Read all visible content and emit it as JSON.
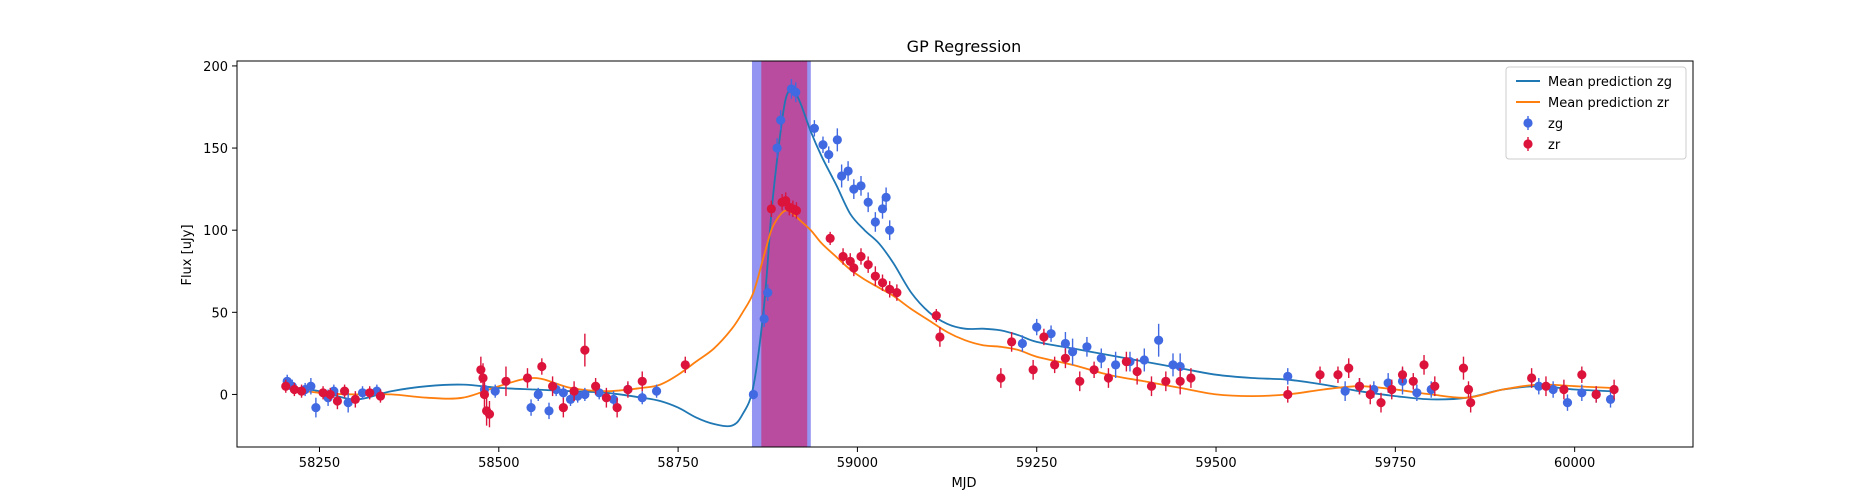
{
  "chart_data": {
    "type": "scatter",
    "title": "GP Regression",
    "xlabel": "MJD",
    "ylabel": "Flux [uJy]",
    "xlim": [
      58135,
      60165
    ],
    "ylim": [
      -32,
      203
    ],
    "xticks": [
      58250,
      58500,
      58750,
      59000,
      59250,
      59500,
      59750,
      60000
    ],
    "yticks": [
      0,
      50,
      100,
      150,
      200
    ],
    "legend_position": "upper right",
    "colors": {
      "zg_line": "#1f77b4",
      "zr_line": "#ff7f0e",
      "zg_points": "#4169e1",
      "zr_points": "#dc143c",
      "band_outer": "#7070ee",
      "band_inner": "#c0408f"
    },
    "shaded_regions": [
      {
        "x0": 58853,
        "x1": 58935,
        "kind": "outer"
      },
      {
        "x0": 58866,
        "x1": 58930,
        "kind": "inner"
      }
    ],
    "series": [
      {
        "name": "Mean prediction zg",
        "kind": "line",
        "color": "#1f77b4",
        "x": [
          58200,
          58250,
          58300,
          58350,
          58400,
          58450,
          58500,
          58550,
          58600,
          58650,
          58700,
          58725,
          58750,
          58775,
          58800,
          58825,
          58840,
          58855,
          58870,
          58880,
          58890,
          58900,
          58910,
          58920,
          58935,
          58950,
          58970,
          58990,
          59010,
          59030,
          59050,
          59075,
          59100,
          59125,
          59150,
          59175,
          59200,
          59225,
          59250,
          59300,
          59350,
          59400,
          59450,
          59500,
          59550,
          59600,
          59650,
          59700,
          59750,
          59800,
          59850,
          59900,
          59950,
          60000,
          60050
        ],
        "y": [
          5,
          2,
          -3,
          2,
          5,
          6,
          4,
          3,
          2,
          1,
          -2,
          -4,
          -8,
          -14,
          -18,
          -19,
          -12,
          5,
          55,
          110,
          150,
          180,
          185,
          178,
          160,
          145,
          128,
          110,
          100,
          92,
          80,
          62,
          50,
          43,
          40,
          40,
          39,
          36,
          32,
          28,
          24,
          20,
          16,
          12,
          10,
          9,
          6,
          2,
          -1,
          -3,
          -2,
          3,
          5,
          3,
          2
        ]
      },
      {
        "name": "Mean prediction zr",
        "kind": "line",
        "color": "#ff7f0e",
        "x": [
          58200,
          58250,
          58300,
          58350,
          58400,
          58450,
          58500,
          58550,
          58600,
          58650,
          58700,
          58725,
          58750,
          58775,
          58800,
          58825,
          58840,
          58855,
          58870,
          58880,
          58890,
          58900,
          58910,
          58920,
          58935,
          58950,
          58970,
          58990,
          59010,
          59030,
          59050,
          59075,
          59100,
          59125,
          59150,
          59175,
          59200,
          59225,
          59250,
          59300,
          59350,
          59400,
          59450,
          59500,
          59550,
          59600,
          59650,
          59700,
          59750,
          59800,
          59850,
          59900,
          59950,
          60000,
          60050
        ],
        "y": [
          4,
          1,
          0,
          0,
          -2,
          -2,
          5,
          10,
          4,
          2,
          4,
          6,
          12,
          20,
          28,
          40,
          50,
          62,
          85,
          100,
          108,
          112,
          110,
          106,
          100,
          92,
          84,
          76,
          70,
          65,
          60,
          52,
          45,
          38,
          33,
          30,
          29,
          27,
          23,
          18,
          12,
          8,
          4,
          0,
          -1,
          0,
          3,
          5,
          3,
          0,
          -2,
          3,
          6,
          5,
          4
        ]
      },
      {
        "name": "zg",
        "kind": "errorbar",
        "color": "#4169e1",
        "x": [
          58205,
          58212,
          58230,
          58238,
          58245,
          58262,
          58270,
          58290,
          58310,
          58330,
          58480,
          58495,
          58545,
          58555,
          58570,
          58580,
          58590,
          58600,
          58610,
          58620,
          58640,
          58660,
          58680,
          58700,
          58720,
          58855,
          58870,
          58875,
          58888,
          58893,
          58908,
          58914,
          58940,
          58952,
          58960,
          58972,
          58978,
          58987,
          58995,
          59005,
          59015,
          59025,
          59035,
          59040,
          59045,
          59230,
          59250,
          59270,
          59290,
          59300,
          59320,
          59340,
          59360,
          59380,
          59400,
          59420,
          59440,
          59450,
          59600,
          59680,
          59700,
          59720,
          59740,
          59760,
          59780,
          59800,
          59950,
          59970,
          59990,
          60010,
          60030,
          60050
        ],
        "y": [
          8,
          5,
          3,
          5,
          -8,
          -2,
          2,
          -5,
          1,
          2,
          3,
          2,
          -8,
          0,
          -10,
          3,
          1,
          -3,
          -1,
          0,
          1,
          -3,
          3,
          -2,
          2,
          0,
          46,
          62,
          150,
          167,
          186,
          184,
          162,
          152,
          146,
          155,
          133,
          136,
          125,
          127,
          117,
          105,
          113,
          120,
          100,
          31,
          41,
          37,
          31,
          26,
          29,
          22,
          18,
          20,
          21,
          33,
          18,
          17,
          11,
          2,
          5,
          3,
          7,
          8,
          1,
          3,
          5,
          3,
          -5,
          1,
          0,
          -3
        ],
        "yerr": [
          4,
          4,
          4,
          5,
          6,
          5,
          4,
          6,
          4,
          4,
          4,
          4,
          5,
          4,
          5,
          4,
          4,
          4,
          4,
          4,
          4,
          5,
          4,
          4,
          4,
          3,
          5,
          5,
          6,
          6,
          6,
          6,
          5,
          5,
          5,
          7,
          7,
          6,
          6,
          6,
          6,
          6,
          6,
          6,
          6,
          5,
          5,
          5,
          7,
          8,
          6,
          6,
          8,
          6,
          7,
          10,
          7,
          8,
          5,
          6,
          5,
          5,
          6,
          8,
          5,
          5,
          5,
          5,
          5,
          5,
          5,
          5
        ]
      },
      {
        "name": "zr",
        "kind": "errorbar",
        "color": "#dc143c",
        "x": [
          58203,
          58215,
          58225,
          58255,
          58265,
          58275,
          58285,
          58300,
          58320,
          58335,
          58475,
          58478,
          58480,
          58483,
          58487,
          58510,
          58540,
          58560,
          58575,
          58590,
          58605,
          58620,
          58635,
          58650,
          58665,
          58680,
          58700,
          58760,
          58880,
          58895,
          58900,
          58905,
          58910,
          58915,
          58962,
          58980,
          58990,
          58995,
          59005,
          59015,
          59025,
          59035,
          59045,
          59055,
          59110,
          59115,
          59200,
          59215,
          59245,
          59260,
          59275,
          59290,
          59310,
          59330,
          59350,
          59375,
          59390,
          59410,
          59430,
          59450,
          59465,
          59600,
          59645,
          59670,
          59685,
          59700,
          59715,
          59730,
          59745,
          59760,
          59775,
          59790,
          59805,
          59845,
          59852,
          59855,
          59940,
          59960,
          59985,
          60010,
          60030,
          60055
        ],
        "y": [
          5,
          3,
          2,
          1,
          0,
          -4,
          2,
          -3,
          1,
          -1,
          15,
          10,
          0,
          -10,
          -12,
          8,
          10,
          17,
          5,
          -8,
          2,
          27,
          5,
          -2,
          -8,
          3,
          8,
          18,
          113,
          117,
          118,
          114,
          113,
          112,
          95,
          84,
          81,
          77,
          84,
          79,
          72,
          68,
          64,
          62,
          48,
          35,
          10,
          32,
          15,
          35,
          18,
          22,
          8,
          15,
          10,
          20,
          14,
          5,
          8,
          8,
          10,
          0,
          12,
          12,
          16,
          5,
          0,
          -5,
          3,
          12,
          8,
          18,
          5,
          16,
          3,
          -5,
          10,
          5,
          3,
          12,
          0,
          3
        ],
        "yerr": [
          4,
          4,
          4,
          4,
          4,
          5,
          4,
          5,
          4,
          4,
          8,
          9,
          10,
          9,
          8,
          9,
          6,
          5,
          6,
          6,
          6,
          10,
          5,
          6,
          6,
          5,
          6,
          5,
          5,
          5,
          5,
          5,
          5,
          5,
          4,
          5,
          5,
          5,
          5,
          5,
          6,
          5,
          5,
          5,
          4,
          6,
          6,
          6,
          6,
          5,
          5,
          6,
          6,
          5,
          6,
          6,
          8,
          6,
          6,
          8,
          6,
          5,
          5,
          5,
          6,
          5,
          6,
          6,
          6,
          5,
          5,
          6,
          6,
          7,
          5,
          6,
          6,
          6,
          6,
          5,
          5,
          6
        ]
      }
    ]
  }
}
